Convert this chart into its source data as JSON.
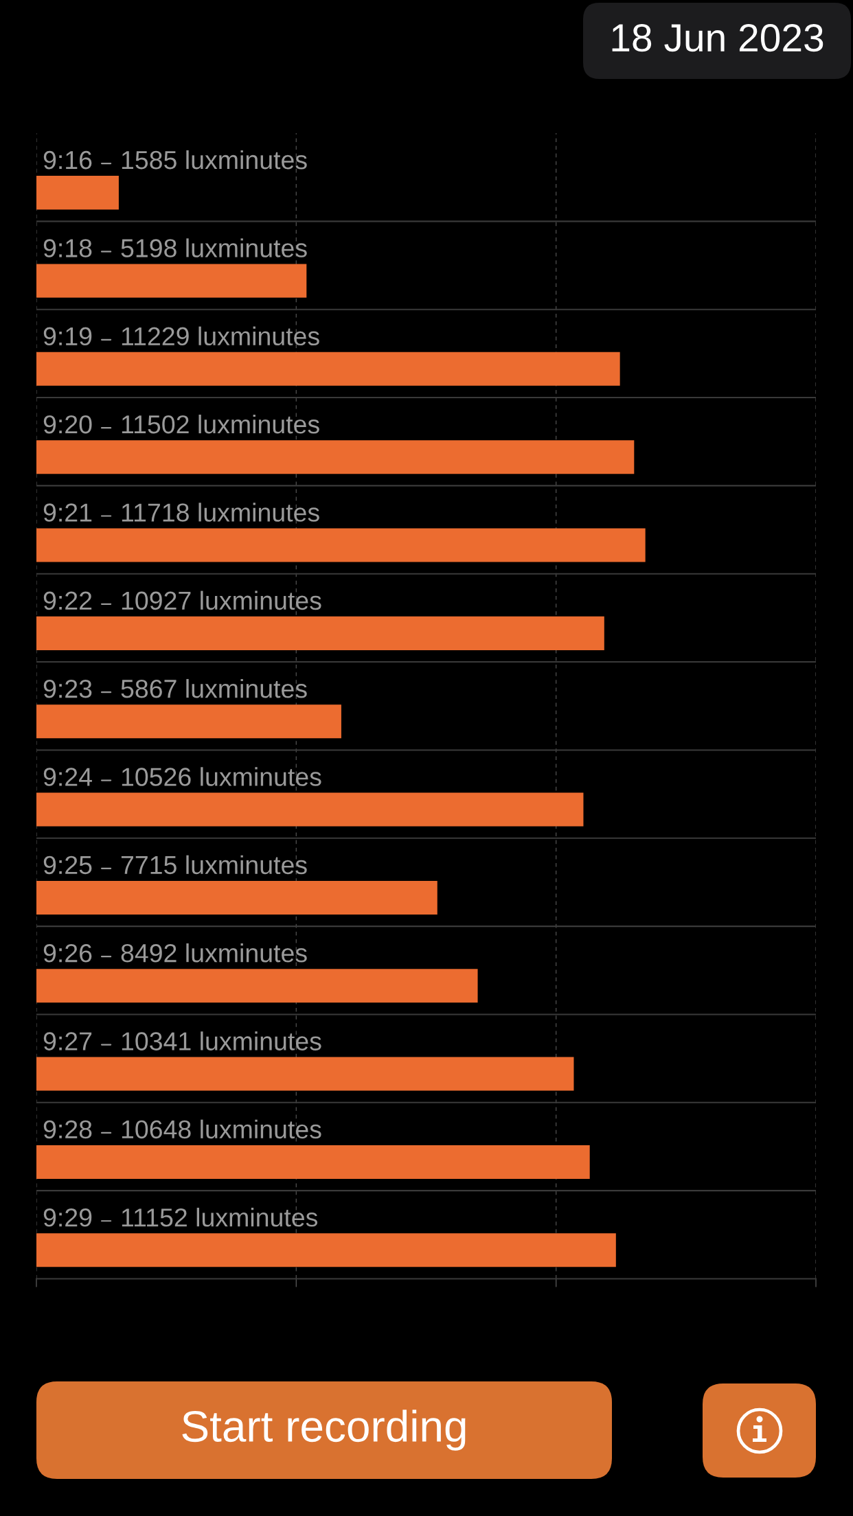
{
  "chart_data": {
    "type": "bar",
    "orientation": "horizontal",
    "title": "18 Jun 2023",
    "categories": [
      "9:16",
      "9:18",
      "9:19",
      "9:20",
      "9:21",
      "9:22",
      "9:23",
      "9:24",
      "9:25",
      "9:26",
      "9:27",
      "9:28",
      "9:29"
    ],
    "values": [
      1585,
      5198,
      11229,
      11502,
      11718,
      10927,
      5867,
      10526,
      7715,
      8492,
      10341,
      10648,
      11152
    ],
    "value_labels": [
      "1585 luxminutes",
      "5198 luxminutes",
      "11229 luxminutes",
      "11502 luxminutes",
      "11718 luxminutes",
      "10927 luxminutes",
      "5867 luxminutes",
      "10526 luxminutes",
      "7715 luxminutes",
      "8492 luxminutes",
      "10341 luxminutes",
      "10648 luxminutes",
      "11152 luxminutes"
    ],
    "color": "#ec6c30",
    "xlim": [
      0,
      15000
    ],
    "xticks": [
      {
        "value": 0,
        "label": null
      },
      {
        "value": 5000,
        "label": null
      },
      {
        "value": 10000,
        "label": null
      },
      {
        "value": 15000,
        "label": null
      }
    ],
    "tick_labels": "y",
    "grid": true,
    "annotations": [
      "Start recording"
    ]
  }
}
